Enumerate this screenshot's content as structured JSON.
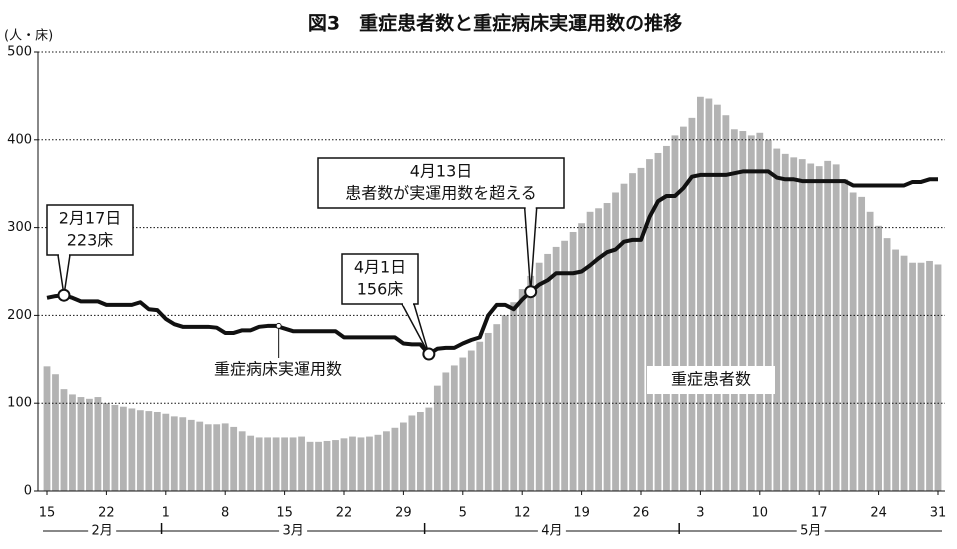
{
  "chart_data": {
    "type": "bar_line",
    "title": "図3　重症患者数と重症病床実運用数の推移",
    "y_unit_label": "(人・床)",
    "categories": [
      "15",
      null,
      null,
      null,
      null,
      null,
      null,
      "22",
      null,
      null,
      null,
      null,
      null,
      null,
      "1",
      null,
      null,
      null,
      null,
      null,
      null,
      "8",
      null,
      null,
      null,
      null,
      null,
      null,
      "15",
      null,
      null,
      null,
      null,
      null,
      null,
      "22",
      null,
      null,
      null,
      null,
      null,
      null,
      "29",
      null,
      null,
      null,
      null,
      null,
      null,
      "5",
      null,
      null,
      null,
      null,
      null,
      null,
      "12",
      null,
      null,
      null,
      null,
      null,
      null,
      "19",
      null,
      null,
      null,
      null,
      null,
      null,
      "26",
      null,
      null,
      null,
      null,
      null,
      null,
      "3",
      null,
      null,
      null,
      null,
      null,
      null,
      "10",
      null,
      null,
      null,
      null,
      null,
      null,
      "17",
      null,
      null,
      null,
      null,
      null,
      null,
      "24",
      null,
      null,
      null,
      null,
      null,
      null,
      "31"
    ],
    "months": [
      "2月",
      "3月",
      "4月",
      "5月"
    ],
    "series": [
      {
        "name": "重症患者数",
        "kind": "bar",
        "color": "#b3b3b3",
        "values": [
          142,
          133,
          116,
          110,
          107,
          105,
          107,
          100,
          98,
          96,
          94,
          92,
          91,
          90,
          88,
          85,
          84,
          81,
          79,
          76,
          76,
          77,
          73,
          68,
          63,
          61,
          61,
          61,
          61,
          61,
          62,
          56,
          56,
          57,
          58,
          60,
          62,
          61,
          62,
          64,
          68,
          72,
          78,
          86,
          90,
          95,
          120,
          135,
          143,
          152,
          160,
          170,
          180,
          190,
          200,
          215,
          230,
          245,
          260,
          270,
          278,
          285,
          295,
          305,
          318,
          322,
          328,
          340,
          350,
          362,
          368,
          378,
          385,
          393,
          405,
          415,
          425,
          449,
          447,
          440,
          428,
          412,
          410,
          405,
          408,
          400,
          390,
          384,
          380,
          378,
          373,
          370,
          376,
          372,
          355,
          340,
          335,
          318,
          302,
          288,
          275,
          268,
          260,
          260,
          262,
          258
        ]
      },
      {
        "name": "重症病床実運用数",
        "kind": "line",
        "color": "#111111",
        "values": [
          220,
          222,
          223,
          220,
          216,
          216,
          216,
          212,
          212,
          212,
          212,
          215,
          207,
          206,
          196,
          190,
          187,
          187,
          187,
          187,
          186,
          180,
          180,
          183,
          183,
          187,
          188,
          188,
          185,
          182,
          182,
          182,
          182,
          182,
          182,
          175,
          175,
          175,
          175,
          175,
          175,
          175,
          168,
          167,
          167,
          156,
          162,
          163,
          163,
          168,
          172,
          175,
          200,
          212,
          212,
          207,
          218,
          227,
          235,
          240,
          248,
          248,
          248,
          250,
          257,
          265,
          272,
          275,
          284,
          286,
          286,
          312,
          330,
          336,
          336,
          345,
          358,
          360,
          360,
          360,
          360,
          362,
          364,
          364,
          364,
          364,
          357,
          355,
          355,
          353,
          353,
          353,
          353,
          353,
          353,
          348,
          348,
          348,
          348,
          348,
          348,
          348,
          352,
          352,
          355,
          355
        ]
      }
    ],
    "annotations": [
      [
        "2月17日",
        "223床"
      ],
      [
        "4月1日",
        "156床"
      ],
      [
        "4月13日",
        "患者数が実運用数を超える"
      ]
    ],
    "ylim": [
      0,
      500
    ],
    "yticks": [
      0,
      100,
      200,
      300,
      400,
      500
    ],
    "grid": true
  }
}
